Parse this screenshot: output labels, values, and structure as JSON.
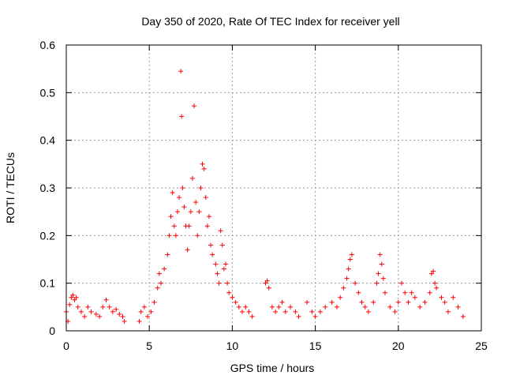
{
  "chart_data": {
    "type": "scatter",
    "title": "Day 350 of 2020, Rate Of TEC Index for receiver yell",
    "xlabel": "GPS time / hours",
    "ylabel": "ROTI / TECUs",
    "xlim": [
      0,
      25
    ],
    "ylim": [
      0,
      0.6
    ],
    "xticks": [
      0,
      5,
      10,
      15,
      20,
      25
    ],
    "xtick_labels": [
      "0",
      "5",
      "10",
      "15",
      "20",
      "25"
    ],
    "yticks": [
      0,
      0.1,
      0.2,
      0.3,
      0.4,
      0.5,
      0.6
    ],
    "ytick_labels": [
      "0",
      "0.1",
      "0.2",
      "0.3",
      "0.4",
      "0.5",
      "0.6"
    ],
    "grid": true,
    "marker": "+",
    "marker_color": "#ff0000",
    "series": [
      {
        "name": "ROTI",
        "points": [
          [
            0.0,
            0.04
          ],
          [
            0.1,
            0.02
          ],
          [
            0.2,
            0.055
          ],
          [
            0.3,
            0.07
          ],
          [
            0.4,
            0.075
          ],
          [
            0.5,
            0.065
          ],
          [
            0.6,
            0.07
          ],
          [
            0.7,
            0.05
          ],
          [
            0.9,
            0.04
          ],
          [
            1.1,
            0.03
          ],
          [
            1.3,
            0.05
          ],
          [
            1.5,
            0.04
          ],
          [
            1.8,
            0.035
          ],
          [
            2.0,
            0.03
          ],
          [
            2.2,
            0.05
          ],
          [
            2.4,
            0.065
          ],
          [
            2.6,
            0.05
          ],
          [
            2.8,
            0.04
          ],
          [
            3.0,
            0.045
          ],
          [
            3.2,
            0.035
          ],
          [
            3.4,
            0.03
          ],
          [
            3.5,
            0.02
          ],
          [
            4.4,
            0.02
          ],
          [
            4.5,
            0.04
          ],
          [
            4.7,
            0.05
          ],
          [
            4.9,
            0.03
          ],
          [
            5.1,
            0.04
          ],
          [
            5.3,
            0.06
          ],
          [
            5.5,
            0.09
          ],
          [
            5.6,
            0.12
          ],
          [
            5.7,
            0.1
          ],
          [
            5.9,
            0.13
          ],
          [
            6.1,
            0.16
          ],
          [
            6.2,
            0.2
          ],
          [
            6.3,
            0.24
          ],
          [
            6.4,
            0.29
          ],
          [
            6.5,
            0.22
          ],
          [
            6.6,
            0.2
          ],
          [
            6.7,
            0.25
          ],
          [
            6.8,
            0.28
          ],
          [
            6.9,
            0.545
          ],
          [
            6.95,
            0.45
          ],
          [
            7.0,
            0.3
          ],
          [
            7.1,
            0.26
          ],
          [
            7.2,
            0.22
          ],
          [
            7.3,
            0.17
          ],
          [
            7.4,
            0.22
          ],
          [
            7.5,
            0.25
          ],
          [
            7.6,
            0.32
          ],
          [
            7.7,
            0.472
          ],
          [
            7.8,
            0.27
          ],
          [
            7.9,
            0.2
          ],
          [
            8.0,
            0.25
          ],
          [
            8.1,
            0.3
          ],
          [
            8.2,
            0.35
          ],
          [
            8.3,
            0.34
          ],
          [
            8.4,
            0.28
          ],
          [
            8.5,
            0.22
          ],
          [
            8.6,
            0.24
          ],
          [
            8.7,
            0.18
          ],
          [
            8.8,
            0.16
          ],
          [
            9.0,
            0.14
          ],
          [
            9.1,
            0.12
          ],
          [
            9.2,
            0.1
          ],
          [
            9.3,
            0.21
          ],
          [
            9.4,
            0.18
          ],
          [
            9.5,
            0.13
          ],
          [
            9.6,
            0.14
          ],
          [
            9.7,
            0.1
          ],
          [
            9.8,
            0.08
          ],
          [
            10.0,
            0.07
          ],
          [
            10.2,
            0.06
          ],
          [
            10.4,
            0.05
          ],
          [
            10.6,
            0.04
          ],
          [
            10.8,
            0.05
          ],
          [
            11.0,
            0.04
          ],
          [
            11.2,
            0.03
          ],
          [
            12.0,
            0.1
          ],
          [
            12.1,
            0.105
          ],
          [
            12.2,
            0.09
          ],
          [
            12.4,
            0.05
          ],
          [
            12.6,
            0.04
          ],
          [
            12.8,
            0.05
          ],
          [
            13.0,
            0.06
          ],
          [
            13.2,
            0.04
          ],
          [
            13.5,
            0.05
          ],
          [
            13.8,
            0.04
          ],
          [
            14.0,
            0.03
          ],
          [
            14.5,
            0.06
          ],
          [
            14.8,
            0.04
          ],
          [
            15.0,
            0.03
          ],
          [
            15.3,
            0.04
          ],
          [
            15.6,
            0.05
          ],
          [
            16.0,
            0.06
          ],
          [
            16.3,
            0.05
          ],
          [
            16.5,
            0.07
          ],
          [
            16.7,
            0.09
          ],
          [
            16.9,
            0.11
          ],
          [
            17.0,
            0.13
          ],
          [
            17.1,
            0.15
          ],
          [
            17.2,
            0.16
          ],
          [
            17.4,
            0.1
          ],
          [
            17.6,
            0.08
          ],
          [
            17.8,
            0.06
          ],
          [
            18.0,
            0.05
          ],
          [
            18.2,
            0.04
          ],
          [
            18.5,
            0.06
          ],
          [
            18.7,
            0.1
          ],
          [
            18.8,
            0.12
          ],
          [
            18.9,
            0.16
          ],
          [
            19.0,
            0.14
          ],
          [
            19.1,
            0.11
          ],
          [
            19.2,
            0.08
          ],
          [
            19.5,
            0.05
          ],
          [
            19.8,
            0.04
          ],
          [
            20.0,
            0.06
          ],
          [
            20.2,
            0.1
          ],
          [
            20.4,
            0.08
          ],
          [
            20.6,
            0.06
          ],
          [
            20.8,
            0.08
          ],
          [
            21.0,
            0.07
          ],
          [
            21.3,
            0.05
          ],
          [
            21.6,
            0.06
          ],
          [
            21.9,
            0.08
          ],
          [
            22.0,
            0.12
          ],
          [
            22.1,
            0.125
          ],
          [
            22.2,
            0.1
          ],
          [
            22.3,
            0.09
          ],
          [
            22.6,
            0.07
          ],
          [
            22.8,
            0.06
          ],
          [
            23.0,
            0.04
          ],
          [
            23.3,
            0.07
          ],
          [
            23.6,
            0.05
          ],
          [
            23.9,
            0.03
          ]
        ]
      }
    ]
  }
}
